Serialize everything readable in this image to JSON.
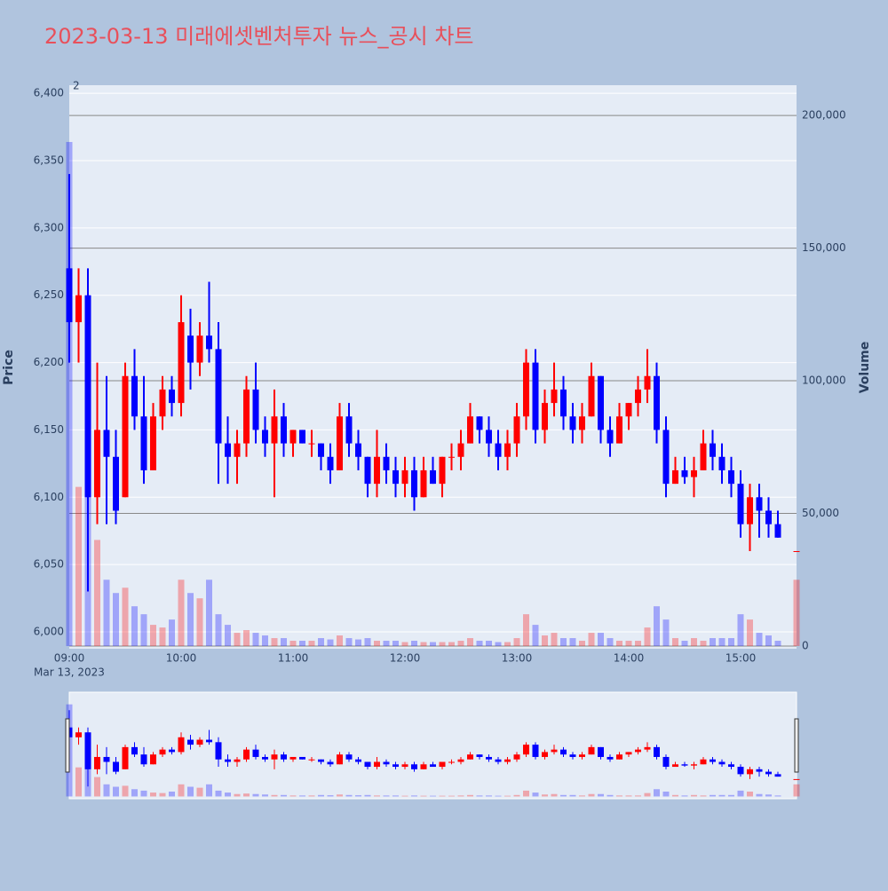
{
  "chart_data": {
    "type": "candlestick",
    "title": "2023-03-13 미래에셋벤처투자 뉴스_공시 차트",
    "annotation": "2",
    "ylabel": "Price",
    "y2label": "Volume",
    "x_date_label": "Mar 13, 2023",
    "increasing_color": "#ff0000",
    "decreasing_color": "#0000ff",
    "x": [
      "09:00",
      "09:05",
      "09:10",
      "09:15",
      "09:20",
      "09:25",
      "09:30",
      "09:35",
      "09:40",
      "09:45",
      "09:50",
      "09:55",
      "10:00",
      "10:05",
      "10:10",
      "10:15",
      "10:20",
      "10:25",
      "10:30",
      "10:35",
      "10:40",
      "10:45",
      "10:50",
      "10:55",
      "11:00",
      "11:05",
      "11:10",
      "11:15",
      "11:20",
      "11:25",
      "11:30",
      "11:35",
      "11:40",
      "11:45",
      "11:50",
      "11:55",
      "12:00",
      "12:05",
      "12:10",
      "12:15",
      "12:20",
      "12:25",
      "12:30",
      "12:35",
      "12:40",
      "12:45",
      "12:50",
      "12:55",
      "13:00",
      "13:05",
      "13:10",
      "13:15",
      "13:20",
      "13:25",
      "13:30",
      "13:35",
      "13:40",
      "13:45",
      "13:50",
      "13:55",
      "14:00",
      "14:05",
      "14:10",
      "14:15",
      "14:20",
      "14:25",
      "14:30",
      "14:35",
      "14:40",
      "14:45",
      "14:50",
      "14:55",
      "15:00",
      "15:05",
      "15:10",
      "15:15",
      "15:20",
      "15:30"
    ],
    "open": [
      6270,
      6230,
      6250,
      6100,
      6150,
      6130,
      6100,
      6190,
      6160,
      6120,
      6160,
      6180,
      6170,
      6220,
      6200,
      6220,
      6210,
      6140,
      6130,
      6140,
      6180,
      6150,
      6140,
      6160,
      6140,
      6150,
      6140,
      6140,
      6130,
      6120,
      6160,
      6140,
      6130,
      6110,
      6130,
      6120,
      6110,
      6120,
      6100,
      6120,
      6110,
      6130,
      6130,
      6140,
      6160,
      6150,
      6140,
      6130,
      6140,
      6160,
      6200,
      6150,
      6170,
      6180,
      6160,
      6150,
      6160,
      6190,
      6150,
      6140,
      6160,
      6170,
      6180,
      6190,
      6150,
      6110,
      6120,
      6115,
      6120,
      6140,
      6130,
      6120,
      6110,
      6080,
      6100,
      6090,
      6080,
      6060
    ],
    "high": [
      6340,
      6270,
      6270,
      6200,
      6190,
      6150,
      6200,
      6210,
      6190,
      6170,
      6190,
      6190,
      6250,
      6240,
      6230,
      6260,
      6230,
      6160,
      6150,
      6190,
      6200,
      6160,
      6180,
      6170,
      6150,
      6150,
      6150,
      6140,
      6140,
      6170,
      6170,
      6150,
      6130,
      6150,
      6140,
      6130,
      6130,
      6130,
      6130,
      6130,
      6130,
      6140,
      6150,
      6170,
      6160,
      6160,
      6150,
      6150,
      6170,
      6210,
      6210,
      6180,
      6200,
      6190,
      6170,
      6170,
      6200,
      6190,
      6160,
      6170,
      6170,
      6190,
      6210,
      6200,
      6160,
      6130,
      6130,
      6130,
      6150,
      6150,
      6140,
      6130,
      6120,
      6110,
      6110,
      6100,
      6090,
      6060
    ],
    "low": [
      6200,
      6200,
      6030,
      6080,
      6080,
      6080,
      6100,
      6150,
      6110,
      6120,
      6150,
      6160,
      6160,
      6180,
      6190,
      6200,
      6110,
      6110,
      6110,
      6130,
      6140,
      6130,
      6100,
      6130,
      6130,
      6140,
      6130,
      6120,
      6110,
      6120,
      6130,
      6120,
      6100,
      6100,
      6110,
      6100,
      6100,
      6090,
      6100,
      6110,
      6100,
      6120,
      6120,
      6140,
      6140,
      6130,
      6120,
      6120,
      6130,
      6150,
      6140,
      6140,
      6160,
      6150,
      6140,
      6140,
      6160,
      6140,
      6130,
      6140,
      6150,
      6160,
      6170,
      6140,
      6100,
      6110,
      6110,
      6100,
      6120,
      6120,
      6110,
      6100,
      6070,
      6060,
      6070,
      6070,
      6070,
      6060
    ],
    "close": [
      6230,
      6250,
      6100,
      6150,
      6130,
      6090,
      6190,
      6160,
      6120,
      6160,
      6180,
      6170,
      6230,
      6200,
      6220,
      6210,
      6140,
      6130,
      6140,
      6180,
      6150,
      6140,
      6160,
      6140,
      6150,
      6140,
      6140,
      6130,
      6120,
      6160,
      6140,
      6130,
      6110,
      6130,
      6120,
      6110,
      6120,
      6100,
      6120,
      6110,
      6130,
      6130,
      6140,
      6160,
      6150,
      6140,
      6130,
      6140,
      6160,
      6200,
      6150,
      6170,
      6180,
      6160,
      6150,
      6160,
      6190,
      6150,
      6140,
      6160,
      6170,
      6180,
      6190,
      6150,
      6110,
      6120,
      6115,
      6120,
      6140,
      6130,
      6120,
      6110,
      6080,
      6100,
      6090,
      6080,
      6070,
      6060
    ],
    "volume": [
      190000,
      60000,
      80000,
      40000,
      25000,
      20000,
      22000,
      15000,
      12000,
      8000,
      7000,
      10000,
      25000,
      20000,
      18000,
      25000,
      12000,
      8000,
      5000,
      6000,
      5000,
      4000,
      3000,
      3000,
      2000,
      2000,
      2000,
      3000,
      2500,
      4000,
      3000,
      2500,
      3000,
      2000,
      2000,
      2000,
      1500,
      2000,
      1500,
      1500,
      1500,
      1500,
      2000,
      3000,
      2000,
      2000,
      1500,
      1500,
      3000,
      12000,
      8000,
      4000,
      5000,
      3000,
      3000,
      2000,
      5000,
      5000,
      3000,
      2000,
      2000,
      2000,
      7000,
      15000,
      10000,
      3000,
      2000,
      3000,
      2000,
      3000,
      3000,
      3000,
      12000,
      10000,
      5000,
      4000,
      2000,
      25000
    ],
    "xlim": [
      "09:00",
      "15:30"
    ],
    "xticks": [
      "09:00",
      "10:00",
      "11:00",
      "12:00",
      "13:00",
      "14:00",
      "15:00"
    ],
    "ylim": [
      5987.5,
      6406
    ],
    "yticks": [
      {
        "value": 6000,
        "label": "6,000"
      },
      {
        "value": 6050,
        "label": "6,050"
      },
      {
        "value": 6100,
        "label": "6,100"
      },
      {
        "value": 6150,
        "label": "6,150"
      },
      {
        "value": 6200,
        "label": "6,200"
      },
      {
        "value": 6250,
        "label": "6,250"
      },
      {
        "value": 6300,
        "label": "6,300"
      },
      {
        "value": 6350,
        "label": "6,350"
      },
      {
        "value": 6400,
        "label": "6,400"
      }
    ],
    "y2lim": [
      -1000,
      211400
    ],
    "y2ticks": [
      0,
      {
        "value": 50000,
        "label": "50,000"
      },
      {
        "value": 100000,
        "label": "100,000"
      },
      {
        "value": 150000,
        "label": "150,000"
      },
      {
        "value": 200000,
        "label": "200,000"
      }
    ],
    "grid": true
  }
}
